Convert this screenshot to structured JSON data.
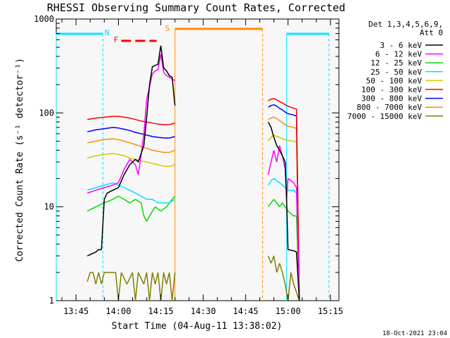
{
  "chart_data": {
    "type": "line",
    "title": "RHESSI Observing Summary Count Rates, Corrected",
    "xlabel": "Start Time (04-Aug-11 13:38:02)",
    "ylabel": "Corrected Count Rate (s⁻¹ detector⁻¹)",
    "y_scale": "log",
    "ylim": [
      1,
      1000
    ],
    "y_ticks": [
      {
        "value": 1,
        "label": "1"
      },
      {
        "value": 10,
        "label": "10"
      },
      {
        "value": 100,
        "label": "100"
      },
      {
        "value": 1000,
        "label": "1000"
      }
    ],
    "xlim": [
      "13:38",
      "15:18"
    ],
    "x_ticks": [
      "13:45",
      "14:00",
      "14:15",
      "14:30",
      "14:45",
      "15:00",
      "15:15"
    ],
    "legend_position": "right",
    "legend_header": [
      "Det 1,3,4,5,6,9,",
      "Att 0"
    ],
    "footer_timestamp": "18-Oct-2021 23:04",
    "markers": [
      {
        "label": "N",
        "color": "#00e0ff"
      },
      {
        "label": "F",
        "color": "#ff0000"
      },
      {
        "label": "S",
        "color": "#ff8c00"
      }
    ],
    "intervals": [
      {
        "type": "night",
        "color": "#00e8ff",
        "start": "13:38",
        "end": "13:54.5"
      },
      {
        "type": "night",
        "color": "#00e8ff",
        "start": "14:59.5",
        "end": "15:14.5"
      },
      {
        "type": "flare",
        "color": "#ff0000",
        "start": "14:01",
        "end": "14:13.5"
      },
      {
        "type": "saa",
        "color": "#ff8c00",
        "start": "14:20",
        "end": "14:51"
      }
    ],
    "series": [
      {
        "name": "3 - 6 keV",
        "color": "#000000",
        "points": [
          [
            "13:49",
            3
          ],
          [
            "13:52",
            3.3
          ],
          [
            "13:53",
            3.5
          ],
          [
            "13:54",
            3.5
          ],
          [
            "13:55",
            12
          ],
          [
            "13:56",
            14
          ],
          [
            "13:58",
            15
          ],
          [
            "14:00",
            16
          ],
          [
            "14:02",
            22
          ],
          [
            "14:04",
            28
          ],
          [
            "14:06",
            32
          ],
          [
            "14:07",
            30
          ],
          [
            "14:09",
            45
          ],
          [
            "14:10",
            90
          ],
          [
            "14:11",
            200
          ],
          [
            "14:12",
            310
          ],
          [
            "14:13",
            320
          ],
          [
            "14:14",
            330
          ],
          [
            "14:15",
            520
          ],
          [
            "14:16",
            300
          ],
          [
            "14:17",
            280
          ],
          [
            "14:18",
            250
          ],
          [
            "14:19",
            240
          ],
          [
            "14:20",
            120
          ],
          null,
          [
            "14:53",
            80
          ],
          [
            "14:54",
            70
          ],
          [
            "14:55",
            55
          ],
          [
            "14:56",
            45
          ],
          [
            "14:57",
            40
          ],
          [
            "14:58",
            35
          ],
          [
            "14:59",
            30
          ],
          [
            "14:59.5",
            12
          ],
          [
            "15:00",
            3.5
          ],
          [
            "15:02",
            3.4
          ],
          [
            "15:03",
            3.3
          ],
          [
            "15:04",
            1
          ]
        ]
      },
      {
        "name": "6 - 12 keV",
        "color": "#ff00ff",
        "points": [
          [
            "13:49",
            14
          ],
          [
            "13:52",
            15
          ],
          [
            "13:55",
            16
          ],
          [
            "13:58",
            17
          ],
          [
            "14:00",
            18
          ],
          [
            "14:02",
            25
          ],
          [
            "14:04",
            32
          ],
          [
            "14:06",
            28
          ],
          [
            "14:07",
            22
          ],
          [
            "14:08",
            35
          ],
          [
            "14:09",
            60
          ],
          [
            "14:10",
            140
          ],
          [
            "14:11",
            190
          ],
          [
            "14:12",
            260
          ],
          [
            "14:13",
            280
          ],
          [
            "14:14",
            290
          ],
          [
            "14:15",
            420
          ],
          [
            "14:16",
            270
          ],
          [
            "14:17",
            250
          ],
          [
            "14:18",
            240
          ],
          [
            "14:19",
            230
          ],
          [
            "14:20",
            220
          ],
          null,
          [
            "14:53",
            22
          ],
          [
            "14:54",
            30
          ],
          [
            "14:55",
            40
          ],
          [
            "14:56",
            30
          ],
          [
            "14:57",
            45
          ],
          [
            "14:58",
            35
          ],
          [
            "14:59",
            25
          ],
          [
            "14:59.5",
            12
          ],
          [
            "15:00",
            20
          ],
          [
            "15:02",
            18
          ],
          [
            "15:03",
            16
          ],
          [
            "15:04",
            1
          ]
        ]
      },
      {
        "name": "12 - 25 keV",
        "color": "#00dd00",
        "points": [
          [
            "13:49",
            9
          ],
          [
            "13:52",
            10
          ],
          [
            "13:55",
            11
          ],
          [
            "13:58",
            12
          ],
          [
            "14:00",
            13
          ],
          [
            "14:02",
            12
          ],
          [
            "14:04",
            11
          ],
          [
            "14:06",
            12
          ],
          [
            "14:08",
            11
          ],
          [
            "14:09",
            8
          ],
          [
            "14:10",
            7
          ],
          [
            "14:11",
            8
          ],
          [
            "14:13",
            10
          ],
          [
            "14:15",
            9
          ],
          [
            "14:17",
            10
          ],
          [
            "14:19",
            12
          ],
          [
            "14:20",
            13
          ],
          null,
          [
            "14:53",
            10
          ],
          [
            "14:54",
            11
          ],
          [
            "14:55",
            12
          ],
          [
            "14:56",
            11
          ],
          [
            "14:57",
            10
          ],
          [
            "14:58",
            11
          ],
          [
            "14:59",
            10
          ],
          [
            "15:00",
            9
          ],
          [
            "15:02",
            8
          ],
          [
            "15:03",
            8
          ],
          [
            "15:04",
            1
          ]
        ]
      },
      {
        "name": "25 - 50 keV",
        "color": "#00e0ff",
        "points": [
          [
            "13:49",
            15
          ],
          [
            "13:52",
            16
          ],
          [
            "13:55",
            17
          ],
          [
            "13:58",
            18
          ],
          [
            "14:00",
            17
          ],
          [
            "14:02",
            16
          ],
          [
            "14:04",
            15
          ],
          [
            "14:06",
            14
          ],
          [
            "14:08",
            13
          ],
          [
            "14:10",
            12
          ],
          [
            "14:12",
            12
          ],
          [
            "14:14",
            11
          ],
          [
            "14:16",
            11
          ],
          [
            "14:18",
            11
          ],
          [
            "14:20",
            12
          ],
          null,
          [
            "14:53",
            17
          ],
          [
            "14:54",
            19
          ],
          [
            "14:55",
            20
          ],
          [
            "14:56",
            19
          ],
          [
            "14:57",
            18
          ],
          [
            "14:58",
            17
          ],
          [
            "14:59",
            16
          ],
          [
            "15:00",
            15
          ],
          [
            "15:02",
            15
          ],
          [
            "15:03",
            14
          ],
          [
            "15:04",
            1
          ]
        ]
      },
      {
        "name": "50 - 100 keV",
        "color": "#d8c800",
        "points": [
          [
            "13:49",
            33
          ],
          [
            "13:52",
            35
          ],
          [
            "13:55",
            36
          ],
          [
            "13:58",
            37
          ],
          [
            "14:00",
            36
          ],
          [
            "14:02",
            35
          ],
          [
            "14:04",
            33
          ],
          [
            "14:06",
            32
          ],
          [
            "14:08",
            31
          ],
          [
            "14:10",
            30
          ],
          [
            "14:12",
            29
          ],
          [
            "14:14",
            28
          ],
          [
            "14:16",
            27
          ],
          [
            "14:18",
            27
          ],
          [
            "14:20",
            28
          ],
          null,
          [
            "14:53",
            50
          ],
          [
            "14:54",
            55
          ],
          [
            "14:55",
            58
          ],
          [
            "14:56",
            56
          ],
          [
            "14:57",
            55
          ],
          [
            "14:58",
            53
          ],
          [
            "14:59",
            52
          ],
          [
            "15:00",
            51
          ],
          [
            "15:02",
            50
          ],
          [
            "15:03",
            49
          ],
          [
            "15:04",
            1
          ]
        ]
      },
      {
        "name": "100 - 300 keV",
        "color": "#ff0000",
        "points": [
          [
            "13:49",
            85
          ],
          [
            "13:52",
            88
          ],
          [
            "13:55",
            90
          ],
          [
            "13:58",
            92
          ],
          [
            "14:00",
            92
          ],
          [
            "14:02",
            90
          ],
          [
            "14:04",
            88
          ],
          [
            "14:06",
            85
          ],
          [
            "14:08",
            82
          ],
          [
            "14:10",
            80
          ],
          [
            "14:12",
            78
          ],
          [
            "14:14",
            76
          ],
          [
            "14:16",
            75
          ],
          [
            "14:18",
            75
          ],
          [
            "14:20",
            78
          ],
          null,
          [
            "14:53",
            135
          ],
          [
            "14:54",
            140
          ],
          [
            "14:55",
            142
          ],
          [
            "14:56",
            138
          ],
          [
            "14:57",
            132
          ],
          [
            "14:58",
            128
          ],
          [
            "14:59",
            122
          ],
          [
            "15:00",
            118
          ],
          [
            "15:02",
            112
          ],
          [
            "15:03",
            110
          ],
          [
            "15:04",
            1
          ]
        ]
      },
      {
        "name": "300 - 800 keV",
        "color": "#0000ff",
        "points": [
          [
            "13:49",
            63
          ],
          [
            "13:52",
            66
          ],
          [
            "13:55",
            68
          ],
          [
            "13:58",
            70
          ],
          [
            "14:00",
            69
          ],
          [
            "14:02",
            67
          ],
          [
            "14:04",
            65
          ],
          [
            "14:06",
            62
          ],
          [
            "14:08",
            60
          ],
          [
            "14:10",
            58
          ],
          [
            "14:12",
            56
          ],
          [
            "14:14",
            55
          ],
          [
            "14:16",
            54
          ],
          [
            "14:18",
            54
          ],
          [
            "14:20",
            56
          ],
          null,
          [
            "14:53",
            115
          ],
          [
            "14:54",
            120
          ],
          [
            "14:55",
            122
          ],
          [
            "14:56",
            118
          ],
          [
            "14:57",
            112
          ],
          [
            "14:58",
            108
          ],
          [
            "14:59",
            102
          ],
          [
            "15:00",
            98
          ],
          [
            "15:02",
            95
          ],
          [
            "15:03",
            92
          ],
          [
            "15:04",
            1
          ]
        ]
      },
      {
        "name": "800 - 7000 keV",
        "color": "#ff8c00",
        "points": [
          [
            "13:49",
            48
          ],
          [
            "13:52",
            50
          ],
          [
            "13:55",
            52
          ],
          [
            "13:58",
            53
          ],
          [
            "14:00",
            52
          ],
          [
            "14:02",
            50
          ],
          [
            "14:04",
            48
          ],
          [
            "14:06",
            46
          ],
          [
            "14:08",
            44
          ],
          [
            "14:10",
            42
          ],
          [
            "14:12",
            40
          ],
          [
            "14:14",
            39
          ],
          [
            "14:16",
            38
          ],
          [
            "14:18",
            38
          ],
          [
            "14:20",
            40
          ],
          null,
          [
            "14:53",
            85
          ],
          [
            "14:54",
            88
          ],
          [
            "14:55",
            90
          ],
          [
            "14:56",
            87
          ],
          [
            "14:57",
            83
          ],
          [
            "14:58",
            79
          ],
          [
            "14:59",
            75
          ],
          [
            "15:00",
            72
          ],
          [
            "15:02",
            70
          ],
          [
            "15:03",
            68
          ],
          [
            "15:04",
            1
          ]
        ]
      },
      {
        "name": "7000 - 15000 keV",
        "color": "#808000",
        "points": [
          [
            "13:49",
            1.6
          ],
          [
            "13:50",
            2
          ],
          [
            "13:51",
            2
          ],
          [
            "13:52",
            1.5
          ],
          [
            "13:53",
            2
          ],
          [
            "13:54",
            1.5
          ],
          [
            "13:55",
            2
          ],
          [
            "13:57",
            2
          ],
          [
            "13:59",
            2
          ],
          [
            "14:00",
            1
          ],
          [
            "14:01",
            2
          ],
          [
            "14:03",
            1.5
          ],
          [
            "14:05",
            2
          ],
          [
            "14:06",
            1
          ],
          [
            "14:07",
            2
          ],
          [
            "14:09",
            1.5
          ],
          [
            "14:10",
            2
          ],
          [
            "14:11",
            1
          ],
          [
            "14:12",
            2
          ],
          [
            "14:13",
            1.5
          ],
          [
            "14:14",
            2
          ],
          [
            "14:15",
            1
          ],
          [
            "14:16",
            2
          ],
          [
            "14:17",
            1.5
          ],
          [
            "14:18",
            2
          ],
          [
            "14:19",
            1
          ],
          [
            "14:20",
            2
          ],
          null,
          [
            "14:53",
            3
          ],
          [
            "14:54",
            2.5
          ],
          [
            "14:55",
            3
          ],
          [
            "14:56",
            2
          ],
          [
            "14:57",
            2.5
          ],
          [
            "14:58",
            2
          ],
          [
            "14:59",
            1.5
          ],
          [
            "15:00",
            1
          ],
          [
            "15:01",
            2
          ],
          [
            "15:02",
            1.5
          ],
          [
            "15:04",
            1
          ]
        ]
      }
    ]
  }
}
